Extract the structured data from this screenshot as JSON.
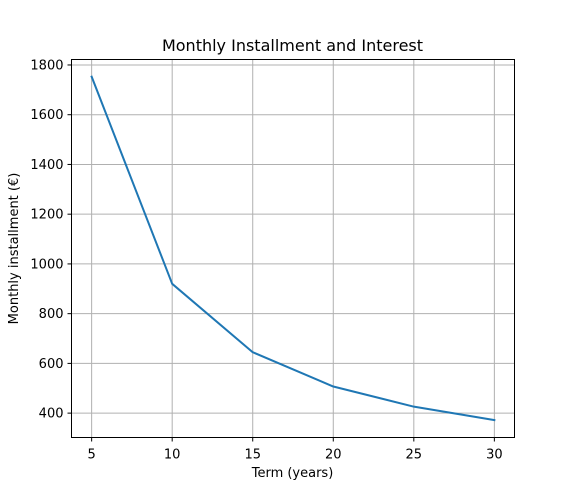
{
  "chart_data": {
    "type": "line",
    "title": "Monthly Installment and Interest",
    "xlabel": "Term (years)",
    "ylabel": "Monthly installment (€)",
    "x": [
      5,
      10,
      15,
      20,
      25,
      30
    ],
    "series": [
      {
        "values": [
          1753,
          920,
          645,
          507,
          426,
          372
        ],
        "color": "#1f77b4"
      }
    ],
    "xlim": [
      3.75,
      31.25
    ],
    "ylim": [
      302,
      1822
    ],
    "xticks": [
      5,
      10,
      15,
      20,
      25,
      30
    ],
    "yticks": [
      400,
      600,
      800,
      1000,
      1200,
      1400,
      1600,
      1800
    ],
    "grid": true,
    "legend": "none"
  }
}
